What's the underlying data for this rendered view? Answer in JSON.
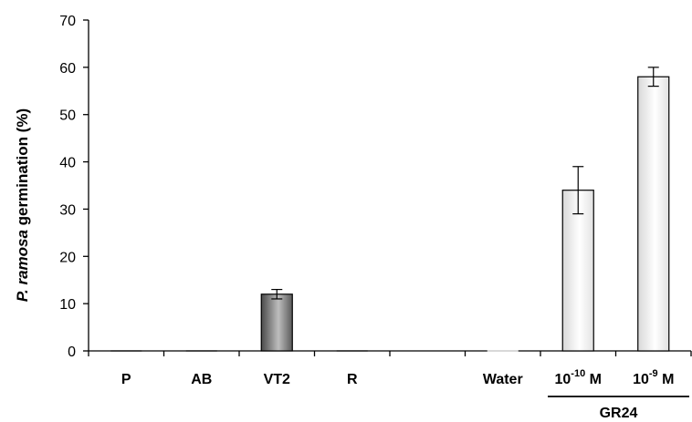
{
  "chart_data": {
    "type": "bar",
    "ylabel": {
      "italic_part": "P. ramosa",
      "rest": " germination (%)"
    },
    "ylim": [
      0,
      70
    ],
    "yticks": [
      0,
      10,
      20,
      30,
      40,
      50,
      60,
      70
    ],
    "grid": false,
    "legend": "none",
    "categories": [
      {
        "label": "P",
        "value": 0,
        "error": 0,
        "fill": "dark"
      },
      {
        "label": "AB",
        "value": 0,
        "error": 0,
        "fill": "dark"
      },
      {
        "label": "VT2",
        "value": 12,
        "error": 1,
        "fill": "dark"
      },
      {
        "label": "R",
        "value": 0,
        "error": 0,
        "fill": "dark"
      },
      {
        "label": "",
        "value": 0,
        "error": 0,
        "fill": "none"
      },
      {
        "label": "Water",
        "value": 0,
        "error": 0,
        "fill": "light"
      },
      {
        "label": "10",
        "sup": "-10",
        "suffix": " M",
        "value": 34,
        "error": 5,
        "fill": "light"
      },
      {
        "label": "10",
        "sup": "-9",
        "suffix": " M",
        "value": 58,
        "error": 2,
        "fill": "light"
      }
    ],
    "group_label": {
      "text": "GR24",
      "spans": [
        6,
        7
      ]
    },
    "colors": {
      "dark_bar_edge": "#4a4a4a",
      "light_bar_edge": "#d8d8d8",
      "axis": "#000000"
    }
  }
}
